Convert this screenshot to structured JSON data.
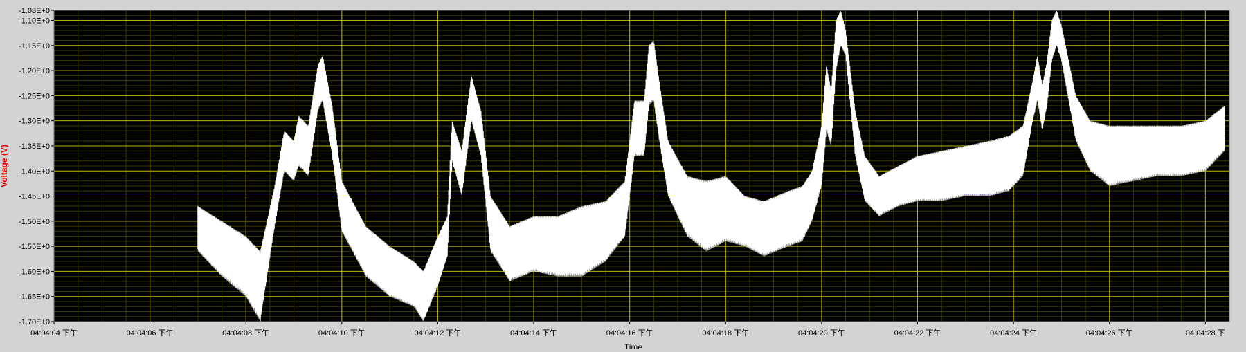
{
  "colors": {
    "frame_bg": "#d3d3d3",
    "plot_bg": "#000000",
    "major_grid": "#b7b300",
    "minor_grid": "#3a3a00",
    "trace": "#ffffff",
    "tick_text": "#000000",
    "ylabel": "#e00000"
  },
  "chart_data": {
    "type": "line",
    "xlabel": "Time",
    "ylabel": "Voltage (V)",
    "grid": true,
    "legend": "none",
    "ylim": [
      -1.7,
      -1.08
    ],
    "yticks": [
      -1.08,
      -1.1,
      -1.15,
      -1.2,
      -1.25,
      -1.3,
      -1.35,
      -1.4,
      -1.45,
      -1.5,
      -1.55,
      -1.6,
      -1.65,
      -1.7
    ],
    "ytick_labels": [
      "-1.08E+0",
      "-1.10E+0",
      "-1.15E+0",
      "-1.20E+0",
      "-1.25E+0",
      "-1.30E+0",
      "-1.35E+0",
      "-1.40E+0",
      "-1.45E+0",
      "-1.50E+0",
      "-1.55E+0",
      "-1.60E+0",
      "-1.65E+0",
      "-1.70E+0"
    ],
    "xlim": [
      "04:04:04",
      "04:04:28.5"
    ],
    "xticks": [
      "04:04:04",
      "04:04:06",
      "04:04:08",
      "04:04:10",
      "04:04:12",
      "04:04:14",
      "04:04:16",
      "04:04:18",
      "04:04:20",
      "04:04:22",
      "04:04:24",
      "04:04:26",
      "04:04:28"
    ],
    "xtick_labels": [
      "04:04:04 下午",
      "04:04:06 下午",
      "04:04:08 下午",
      "04:04:10 下午",
      "04:04:12 下午",
      "04:04:14 下午",
      "04:04:16 下午",
      "04:04:18 下午",
      "04:04:20 下午",
      "04:04:22 下午",
      "04:04:24 下午",
      "04:04:26 下午",
      "04:04:28 下"
    ],
    "series": [
      {
        "upper_envelope": [
          [
            "04:04:07.0",
            -1.47
          ],
          [
            "04:04:07.5",
            -1.5
          ],
          [
            "04:04:08.0",
            -1.53
          ],
          [
            "04:04:08.3",
            -1.56
          ],
          [
            "04:04:08.6",
            -1.43
          ],
          [
            "04:04:08.8",
            -1.32
          ],
          [
            "04:04:09.0",
            -1.34
          ],
          [
            "04:04:09.1",
            -1.29
          ],
          [
            "04:04:09.3",
            -1.31
          ],
          [
            "04:04:09.5",
            -1.19
          ],
          [
            "04:04:09.6",
            -1.17
          ],
          [
            "04:04:09.8",
            -1.27
          ],
          [
            "04:04:10.0",
            -1.42
          ],
          [
            "04:04:10.5",
            -1.51
          ],
          [
            "04:04:11.0",
            -1.55
          ],
          [
            "04:04:11.5",
            -1.58
          ],
          [
            "04:04:11.7",
            -1.6
          ],
          [
            "04:04:12.0",
            -1.53
          ],
          [
            "04:04:12.2",
            -1.49
          ],
          [
            "04:04:12.3",
            -1.3
          ],
          [
            "04:04:12.5",
            -1.36
          ],
          [
            "04:04:12.7",
            -1.21
          ],
          [
            "04:04:12.9",
            -1.28
          ],
          [
            "04:04:13.1",
            -1.45
          ],
          [
            "04:04:13.5",
            -1.51
          ],
          [
            "04:04:14.0",
            -1.49
          ],
          [
            "04:04:14.5",
            -1.49
          ],
          [
            "04:04:15.0",
            -1.47
          ],
          [
            "04:04:15.5",
            -1.46
          ],
          [
            "04:04:15.9",
            -1.42
          ],
          [
            "04:04:16.1",
            -1.26
          ],
          [
            "04:04:16.3",
            -1.26
          ],
          [
            "04:04:16.4",
            -1.15
          ],
          [
            "04:04:16.5",
            -1.14
          ],
          [
            "04:04:16.6",
            -1.21
          ],
          [
            "04:04:16.8",
            -1.34
          ],
          [
            "04:04:17.2",
            -1.41
          ],
          [
            "04:04:17.6",
            -1.42
          ],
          [
            "04:04:18.0",
            -1.41
          ],
          [
            "04:04:18.4",
            -1.45
          ],
          [
            "04:04:18.8",
            -1.46
          ],
          [
            "04:04:19.3",
            -1.44
          ],
          [
            "04:04:19.6",
            -1.43
          ],
          [
            "04:04:19.8",
            -1.4
          ],
          [
            "04:04:20.0",
            -1.31
          ],
          [
            "04:04:20.1",
            -1.19
          ],
          [
            "04:04:20.2",
            -1.24
          ],
          [
            "04:04:20.3",
            -1.1
          ],
          [
            "04:04:20.4",
            -1.08
          ],
          [
            "04:04:20.5",
            -1.12
          ],
          [
            "04:04:20.7",
            -1.28
          ],
          [
            "04:04:20.9",
            -1.37
          ],
          [
            "04:04:21.2",
            -1.41
          ],
          [
            "04:04:21.6",
            -1.39
          ],
          [
            "04:04:22.0",
            -1.37
          ],
          [
            "04:04:22.5",
            -1.36
          ],
          [
            "04:04:23.0",
            -1.35
          ],
          [
            "04:04:23.5",
            -1.34
          ],
          [
            "04:04:23.9",
            -1.33
          ],
          [
            "04:04:24.2",
            -1.31
          ],
          [
            "04:04:24.4",
            -1.22
          ],
          [
            "04:04:24.5",
            -1.17
          ],
          [
            "04:04:24.6",
            -1.23
          ],
          [
            "04:04:24.7",
            -1.18
          ],
          [
            "04:04:24.8",
            -1.1
          ],
          [
            "04:04:24.9",
            -1.08
          ],
          [
            "04:04:25.0",
            -1.11
          ],
          [
            "04:04:25.3",
            -1.25
          ],
          [
            "04:04:25.6",
            -1.3
          ],
          [
            "04:04:26.0",
            -1.31
          ],
          [
            "04:04:26.5",
            -1.31
          ],
          [
            "04:04:27.0",
            -1.31
          ],
          [
            "04:04:27.5",
            -1.31
          ],
          [
            "04:04:28.0",
            -1.3
          ],
          [
            "04:04:28.4",
            -1.27
          ]
        ],
        "lower_envelope": [
          [
            "04:04:07.0",
            -1.56
          ],
          [
            "04:04:07.5",
            -1.61
          ],
          [
            "04:04:08.0",
            -1.65
          ],
          [
            "04:04:08.3",
            -1.7
          ],
          [
            "04:04:08.6",
            -1.51
          ],
          [
            "04:04:08.8",
            -1.4
          ],
          [
            "04:04:09.0",
            -1.42
          ],
          [
            "04:04:09.1",
            -1.39
          ],
          [
            "04:04:09.3",
            -1.41
          ],
          [
            "04:04:09.5",
            -1.28
          ],
          [
            "04:04:09.6",
            -1.26
          ],
          [
            "04:04:09.8",
            -1.37
          ],
          [
            "04:04:10.0",
            -1.52
          ],
          [
            "04:04:10.5",
            -1.61
          ],
          [
            "04:04:11.0",
            -1.65
          ],
          [
            "04:04:11.5",
            -1.67
          ],
          [
            "04:04:11.7",
            -1.7
          ],
          [
            "04:04:12.0",
            -1.63
          ],
          [
            "04:04:12.2",
            -1.57
          ],
          [
            "04:04:12.3",
            -1.38
          ],
          [
            "04:04:12.5",
            -1.45
          ],
          [
            "04:04:12.7",
            -1.3
          ],
          [
            "04:04:12.9",
            -1.37
          ],
          [
            "04:04:13.1",
            -1.56
          ],
          [
            "04:04:13.5",
            -1.62
          ],
          [
            "04:04:14.0",
            -1.6
          ],
          [
            "04:04:14.5",
            -1.61
          ],
          [
            "04:04:15.0",
            -1.61
          ],
          [
            "04:04:15.5",
            -1.58
          ],
          [
            "04:04:15.9",
            -1.53
          ],
          [
            "04:04:16.1",
            -1.37
          ],
          [
            "04:04:16.3",
            -1.37
          ],
          [
            "04:04:16.4",
            -1.27
          ],
          [
            "04:04:16.5",
            -1.26
          ],
          [
            "04:04:16.6",
            -1.33
          ],
          [
            "04:04:16.8",
            -1.45
          ],
          [
            "04:04:17.2",
            -1.53
          ],
          [
            "04:04:17.6",
            -1.56
          ],
          [
            "04:04:18.0",
            -1.54
          ],
          [
            "04:04:18.4",
            -1.55
          ],
          [
            "04:04:18.8",
            -1.57
          ],
          [
            "04:04:19.3",
            -1.55
          ],
          [
            "04:04:19.6",
            -1.54
          ],
          [
            "04:04:19.8",
            -1.5
          ],
          [
            "04:04:20.0",
            -1.43
          ],
          [
            "04:04:20.1",
            -1.32
          ],
          [
            "04:04:20.2",
            -1.35
          ],
          [
            "04:04:20.3",
            -1.2
          ],
          [
            "04:04:20.4",
            -1.15
          ],
          [
            "04:04:20.5",
            -1.17
          ],
          [
            "04:04:20.7",
            -1.37
          ],
          [
            "04:04:20.9",
            -1.46
          ],
          [
            "04:04:21.2",
            -1.49
          ],
          [
            "04:04:21.6",
            -1.47
          ],
          [
            "04:04:22.0",
            -1.46
          ],
          [
            "04:04:22.5",
            -1.46
          ],
          [
            "04:04:23.0",
            -1.45
          ],
          [
            "04:04:23.5",
            -1.45
          ],
          [
            "04:04:23.9",
            -1.44
          ],
          [
            "04:04:24.2",
            -1.41
          ],
          [
            "04:04:24.4",
            -1.3
          ],
          [
            "04:04:24.5",
            -1.26
          ],
          [
            "04:04:24.6",
            -1.32
          ],
          [
            "04:04:24.7",
            -1.27
          ],
          [
            "04:04:24.8",
            -1.18
          ],
          [
            "04:04:24.9",
            -1.15
          ],
          [
            "04:04:25.0",
            -1.18
          ],
          [
            "04:04:25.3",
            -1.34
          ],
          [
            "04:04:25.6",
            -1.4
          ],
          [
            "04:04:26.0",
            -1.43
          ],
          [
            "04:04:26.5",
            -1.42
          ],
          [
            "04:04:27.0",
            -1.41
          ],
          [
            "04:04:27.5",
            -1.41
          ],
          [
            "04:04:28.0",
            -1.4
          ],
          [
            "04:04:28.4",
            -1.36
          ]
        ]
      }
    ]
  }
}
